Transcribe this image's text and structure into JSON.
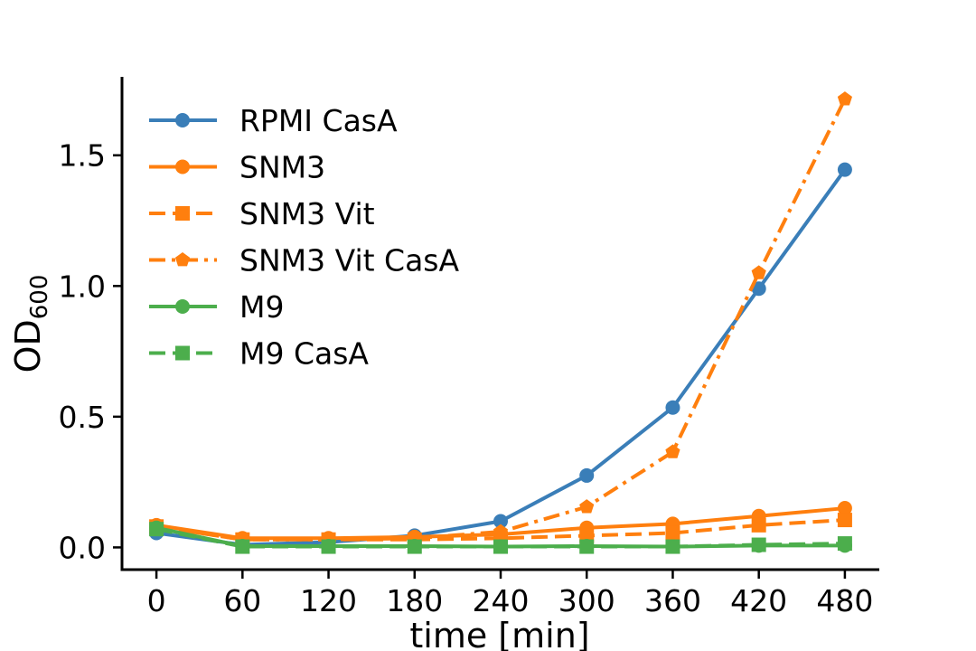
{
  "chart_data": {
    "type": "line",
    "xlabel": "time [min]",
    "ylabel": "OD",
    "ylabel_sub": "600",
    "x": [
      0,
      60,
      120,
      180,
      240,
      300,
      360,
      420,
      480
    ],
    "xticks": [
      "0",
      "60",
      "120",
      "180",
      "240",
      "300",
      "360",
      "420",
      "480"
    ],
    "yticks": [
      "0.0",
      "0.5",
      "1.0",
      "1.5"
    ],
    "ytick_values": [
      0.0,
      0.5,
      1.0,
      1.5
    ],
    "xlim": [
      -24,
      504
    ],
    "ylim": [
      -0.085,
      1.8
    ],
    "grid": false,
    "legend_position": "top-left",
    "series": [
      {
        "name": "RPMI CasA",
        "color": "#3a7eb8",
        "linestyle": "solid",
        "marker": "circle",
        "values": [
          0.055,
          0.01,
          0.02,
          0.045,
          0.1,
          0.275,
          0.535,
          0.99,
          1.445
        ]
      },
      {
        "name": "SNM3",
        "color": "#ff7f0e",
        "linestyle": "solid",
        "marker": "circle",
        "values": [
          0.085,
          0.035,
          0.035,
          0.04,
          0.05,
          0.075,
          0.09,
          0.12,
          0.15
        ]
      },
      {
        "name": "SNM3 Vit",
        "color": "#ff7f0e",
        "linestyle": "dashed",
        "marker": "square",
        "values": [
          0.08,
          0.03,
          0.03,
          0.03,
          0.035,
          0.045,
          0.055,
          0.085,
          0.105
        ]
      },
      {
        "name": "SNM3 Vit CasA",
        "color": "#ff7f0e",
        "linestyle": "dashdot",
        "marker": "pentagon",
        "values": [
          0.08,
          0.03,
          0.03,
          0.035,
          0.06,
          0.155,
          0.365,
          1.05,
          1.715
        ]
      },
      {
        "name": "M9",
        "color": "#4cae4c",
        "linestyle": "solid",
        "marker": "circle",
        "values": [
          0.075,
          0.005,
          0.005,
          0.005,
          0.003,
          0.005,
          0.003,
          0.007,
          0.007
        ]
      },
      {
        "name": "M9 CasA",
        "color": "#4cae4c",
        "linestyle": "dashed",
        "marker": "square",
        "values": [
          0.07,
          0.003,
          0.003,
          0.003,
          0.003,
          0.003,
          0.003,
          0.01,
          0.015
        ]
      }
    ]
  }
}
